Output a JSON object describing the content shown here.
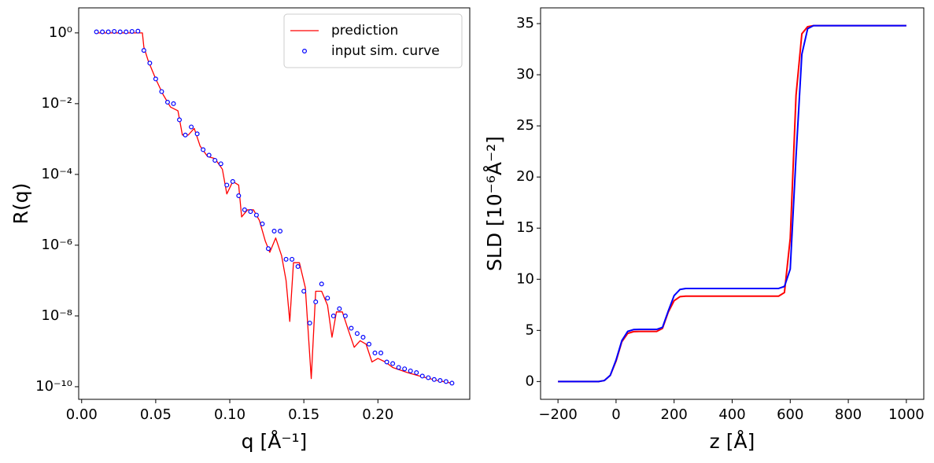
{
  "chart_data": [
    {
      "type": "line",
      "yscale": "log",
      "legend": "upper right",
      "xlabel": "q [Å⁻¹]",
      "ylabel": "R(q)",
      "xlim": [
        -0.002,
        0.262
      ],
      "ylim": [
        4.4e-11,
        5.1
      ],
      "xticks": [
        {
          "value": 0,
          "label": "0.00"
        },
        0.05,
        {
          "value": 0.1,
          "label": "0.10"
        },
        0.15,
        {
          "value": 0.2,
          "label": "0.20"
        }
      ],
      "yticks": [
        {
          "value": 1,
          "label": "10⁰"
        },
        {
          "value": 0.01,
          "label": "10⁻²"
        },
        {
          "value": 0.0001,
          "label": "10⁻⁴"
        },
        {
          "value": 1e-06,
          "label": "10⁻⁶"
        },
        {
          "value": 1e-08,
          "label": "10⁻⁸"
        },
        {
          "value": 1e-10,
          "label": "10⁻¹⁰"
        }
      ],
      "series": [
        {
          "name": "prediction",
          "type": "line",
          "color": "red",
          "x": [
            0.01,
            0.02,
            0.03,
            0.04,
            0.041,
            0.042,
            0.045,
            0.05,
            0.055,
            0.06,
            0.065,
            0.068,
            0.072,
            0.076,
            0.08,
            0.085,
            0.09,
            0.095,
            0.098,
            0.102,
            0.106,
            0.108,
            0.112,
            0.116,
            0.12,
            0.124,
            0.127,
            0.131,
            0.135,
            0.138,
            0.1405,
            0.143,
            0.147,
            0.151,
            0.155,
            0.158,
            0.162,
            0.166,
            0.169,
            0.172,
            0.176,
            0.18,
            0.184,
            0.188,
            0.192,
            0.196,
            0.2,
            0.205,
            0.21,
            0.22,
            0.23,
            0.24,
            0.25
          ],
          "values": [
            1,
            1,
            1,
            1,
            1,
            0.4,
            0.16,
            0.05,
            0.018,
            0.008,
            0.0063,
            0.0013,
            0.0013,
            0.002,
            0.00063,
            0.00032,
            0.00028,
            0.00014,
            2.8e-05,
            6.3e-05,
            5e-05,
            6.3e-06,
            1e-05,
            1e-05,
            5e-06,
            1.3e-06,
            6.3e-07,
            1.6e-06,
            5e-07,
            1e-07,
            7e-09,
            3.2e-07,
            3.2e-07,
            6.3e-08,
            1.7e-10,
            5e-08,
            5e-08,
            2e-08,
            2.5e-09,
            1.3e-08,
            1.3e-08,
            4e-09,
            1.3e-09,
            2e-09,
            1.6e-09,
            5e-10,
            6.3e-10,
            5e-10,
            3.5e-10,
            2.5e-10,
            1.9e-10,
            1.5e-10,
            1.26e-10
          ]
        },
        {
          "name": "input sim. curve",
          "type": "scatter",
          "color": "blue",
          "x": [
            0.01,
            0.014,
            0.018,
            0.022,
            0.026,
            0.03,
            0.034,
            0.038,
            0.042,
            0.046,
            0.05,
            0.054,
            0.058,
            0.062,
            0.066,
            0.07,
            0.074,
            0.078,
            0.082,
            0.086,
            0.09,
            0.094,
            0.098,
            0.102,
            0.106,
            0.11,
            0.114,
            0.118,
            0.122,
            0.126,
            0.13,
            0.134,
            0.138,
            0.142,
            0.146,
            0.15,
            0.154,
            0.158,
            0.162,
            0.166,
            0.17,
            0.174,
            0.178,
            0.182,
            0.186,
            0.19,
            0.194,
            0.198,
            0.202,
            0.206,
            0.21,
            0.214,
            0.218,
            0.222,
            0.226,
            0.23,
            0.234,
            0.238,
            0.242,
            0.246,
            0.25
          ],
          "values": [
            1.07,
            1.07,
            1.07,
            1.1,
            1.07,
            1.07,
            1.1,
            1.12,
            0.32,
            0.14,
            0.05,
            0.022,
            0.011,
            0.01,
            0.0035,
            0.0013,
            0.0022,
            0.0014,
            0.0005,
            0.00035,
            0.00025,
            0.0002,
            5e-05,
            6.3e-05,
            2.5e-05,
            1e-05,
            8.9e-06,
            7.1e-06,
            4e-06,
            8e-07,
            2.5e-06,
            2.5e-06,
            4e-07,
            4e-07,
            2.5e-07,
            5e-08,
            6.3e-09,
            2.5e-08,
            8e-08,
            3.2e-08,
            1e-08,
            1.6e-08,
            1e-08,
            4.5e-09,
            3.2e-09,
            2.5e-09,
            1.6e-09,
            9e-10,
            9e-10,
            5e-10,
            4.5e-10,
            3.5e-10,
            3.2e-10,
            2.8e-10,
            2.5e-10,
            2e-10,
            1.8e-10,
            1.6e-10,
            1.5e-10,
            1.4e-10,
            1.26e-10
          ]
        }
      ]
    },
    {
      "type": "line",
      "xlabel": "z [Å]",
      "ylabel": "SLD [10⁻⁶Å⁻²]",
      "xlim": [
        -260,
        1060
      ],
      "ylim": [
        -1.74,
        36.54
      ],
      "xticks": [
        {
          "value": -200,
          "label": "−200"
        },
        0,
        200,
        400,
        600,
        800,
        1000
      ],
      "yticks": [
        0,
        5,
        10,
        15,
        20,
        25,
        30,
        35
      ],
      "x": [
        -200,
        -180,
        -160,
        -140,
        -120,
        -100,
        -80,
        -60,
        -40,
        -20,
        0,
        20,
        40,
        60,
        80,
        100,
        120,
        140,
        160,
        180,
        200,
        220,
        240,
        260,
        280,
        300,
        320,
        340,
        360,
        380,
        400,
        420,
        440,
        460,
        480,
        500,
        520,
        540,
        560,
        580,
        600,
        620,
        640,
        660,
        680,
        700,
        720,
        740,
        760,
        780,
        800,
        820,
        840,
        860,
        880,
        900,
        920,
        940,
        960,
        980,
        1000
      ],
      "series": [
        {
          "color": "red",
          "values": [
            0,
            0,
            0,
            0,
            0,
            0,
            0,
            0,
            0.1,
            0.6,
            2.0,
            3.9,
            4.7,
            4.88,
            4.9,
            4.9,
            4.9,
            4.9,
            5.2,
            6.8,
            7.9,
            8.3,
            8.35,
            8.35,
            8.35,
            8.35,
            8.35,
            8.35,
            8.35,
            8.35,
            8.35,
            8.35,
            8.35,
            8.35,
            8.35,
            8.35,
            8.35,
            8.35,
            8.35,
            8.7,
            14,
            28,
            34,
            34.7,
            34.8,
            34.8,
            34.8,
            34.8,
            34.8,
            34.8,
            34.8,
            34.8,
            34.8,
            34.8,
            34.8,
            34.8,
            34.8,
            34.8,
            34.8,
            34.8,
            34.8
          ]
        },
        {
          "color": "blue",
          "values": [
            0,
            0,
            0,
            0,
            0,
            0,
            0,
            0,
            0.1,
            0.6,
            2.1,
            4.0,
            4.9,
            5.08,
            5.1,
            5.1,
            5.1,
            5.1,
            5.3,
            6.9,
            8.4,
            9.0,
            9.1,
            9.1,
            9.1,
            9.1,
            9.1,
            9.1,
            9.1,
            9.1,
            9.1,
            9.1,
            9.1,
            9.1,
            9.1,
            9.1,
            9.1,
            9.1,
            9.1,
            9.3,
            11,
            22,
            32,
            34.5,
            34.8,
            34.8,
            34.8,
            34.8,
            34.8,
            34.8,
            34.8,
            34.8,
            34.8,
            34.8,
            34.8,
            34.8,
            34.8,
            34.8,
            34.8,
            34.8,
            34.8
          ]
        }
      ]
    }
  ]
}
